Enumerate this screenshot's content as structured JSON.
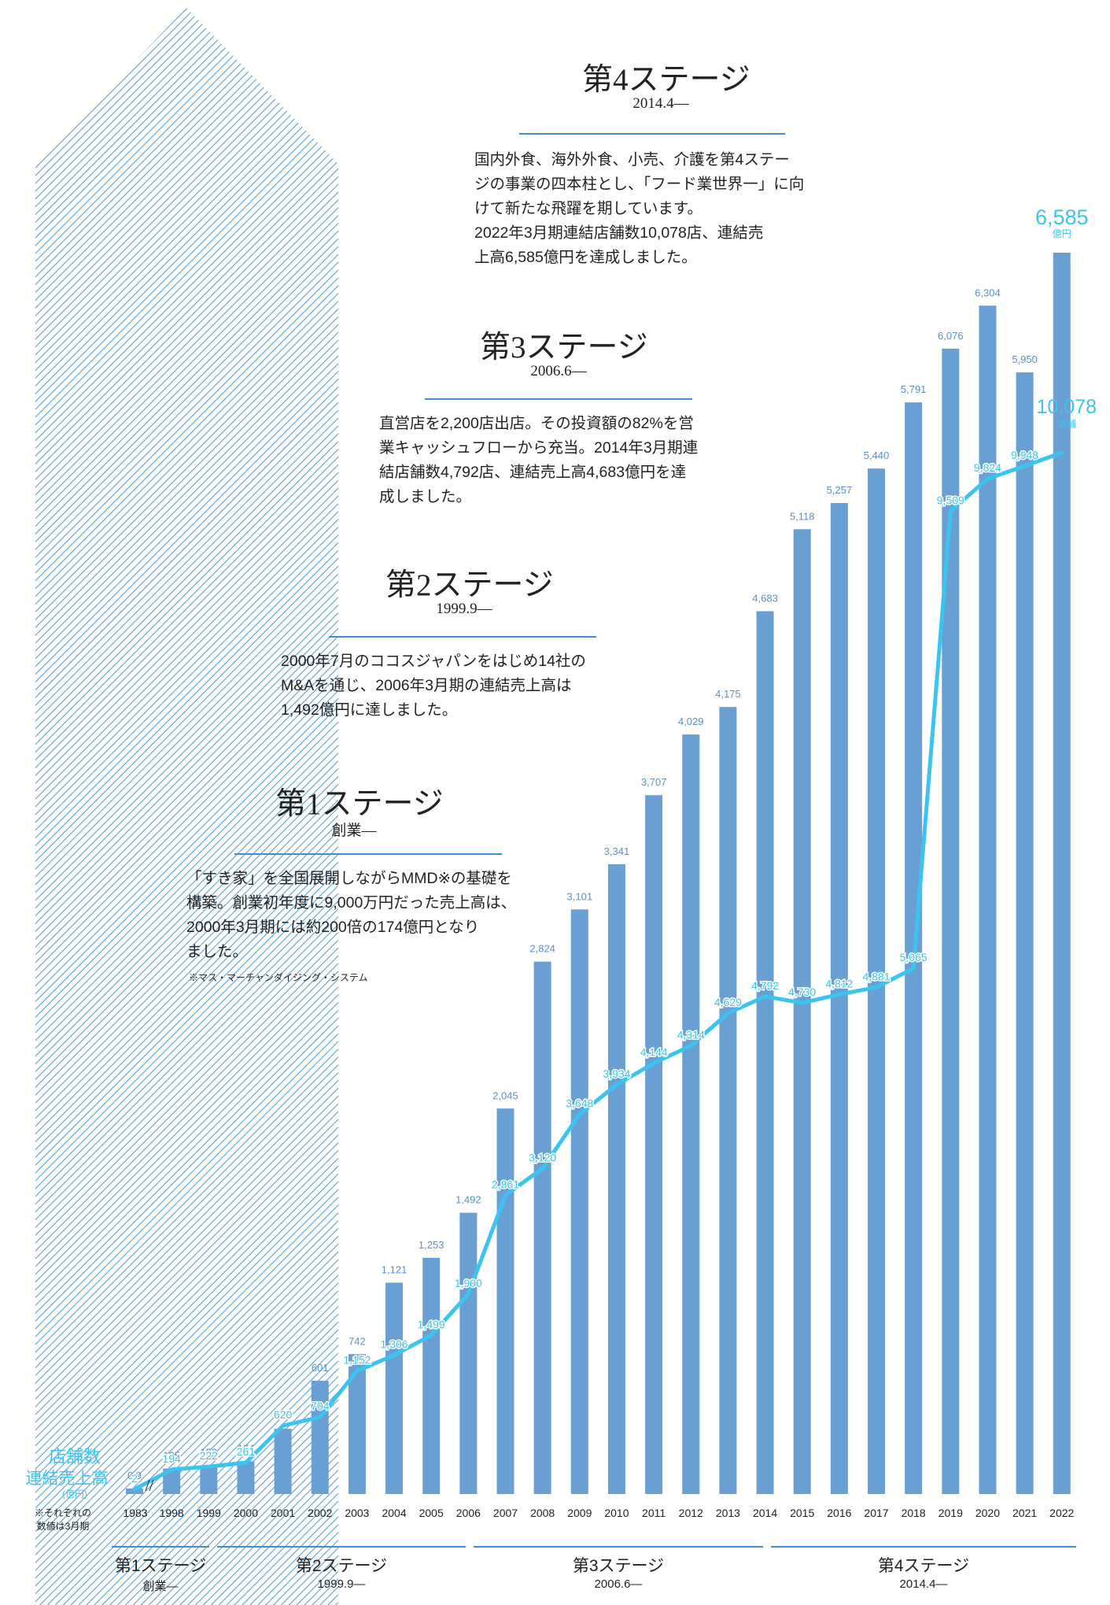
{
  "stages_text": {
    "s4": {
      "title": "第4ステージ",
      "date": "2014.4―",
      "lines": [
        "国内外食、海外外食、小売、介護を第4ステー",
        "ジの事業の四本柱とし、「フード業世界一」に向",
        "けて新たな飛躍を期しています。",
        "2022年3月期連結店舗数10,078店、連結売",
        "上高6,585億円を達成しました。"
      ]
    },
    "s3": {
      "title": "第3ステージ",
      "date": "2006.6―",
      "lines": [
        "直営店を2,200店出店。その投資額の82%を営",
        "業キャッシュフローから充当。2014年3月期連",
        "結店舗数4,792店、連結売上高4,683億円を達",
        "成しました。"
      ]
    },
    "s2": {
      "title": "第2ステージ",
      "date": "1999.9―",
      "lines": [
        "2000年7月のココスジャパンをはじめ14社の",
        "M&Aを通じ、2006年3月期の連結売上高は",
        "1,492億円に達しました。"
      ]
    },
    "s1": {
      "title": "第1ステージ",
      "date": "創業―",
      "lines": [
        "「すき家」を全国展開しながらMMD※の基礎を",
        "構築。創業初年度に9,000万円だった売上高は、",
        "2000年3月期には約200倍の174億円となり",
        "ました。"
      ],
      "footnote": "※マス・マーチャンダイジング・システム"
    }
  },
  "legend": {
    "stores": "店舗数",
    "sales": "連結売上高",
    "sales_unit": "(億円)",
    "note_line1": "※それぞれの",
    "note_line2": "数値は3月期"
  },
  "bottom_bands": [
    {
      "label": "第1ステージ",
      "date": "創業―"
    },
    {
      "label": "第2ステージ",
      "date": "1999.9―"
    },
    {
      "label": "第3ステージ",
      "date": "2006.6―"
    },
    {
      "label": "第4ステージ",
      "date": "2014.4―"
    }
  ],
  "colors": {
    "bar": "#6a9fd4",
    "line": "#3cc4f0",
    "rule": "#3d8fd3",
    "chevron": "#3f8ed2"
  },
  "chart_data": {
    "type": "bar",
    "categories": [
      "1983",
      "1998",
      "1999",
      "2000",
      "2001",
      "2002",
      "2003",
      "2004",
      "2005",
      "2006",
      "2007",
      "2008",
      "2009",
      "2010",
      "2011",
      "2012",
      "2013",
      "2014",
      "2015",
      "2016",
      "2017",
      "2018",
      "2019",
      "2020",
      "2021",
      "2022"
    ],
    "series": [
      {
        "name": "連結売上高",
        "unit": "億円",
        "type": "bar",
        "values": [
          0.9,
          135,
          152,
          174,
          346,
          601,
          742,
          1121,
          1253,
          1492,
          2045,
          2824,
          3101,
          3341,
          3707,
          4029,
          4175,
          4683,
          5118,
          5257,
          5440,
          5791,
          6076,
          6304,
          5950,
          6585
        ],
        "labels": [
          "0.9",
          "135",
          "152",
          "174",
          "346",
          "601",
          "742",
          "1,121",
          "1,253",
          "1,492",
          "2,045",
          "2,824",
          "3,101",
          "3,341",
          "3,707",
          "4,029",
          "4,175",
          "4,683",
          "5,118",
          "5,257",
          "5,440",
          "5,791",
          "6,076",
          "6,304",
          "5,950",
          "6,585"
        ]
      },
      {
        "name": "店舗数",
        "unit": "店舗",
        "type": "line",
        "values": [
          2,
          194,
          222,
          261,
          620,
          704,
          1152,
          1306,
          1499,
          1900,
          2861,
          3120,
          3648,
          3934,
          4144,
          4314,
          4629,
          4792,
          4730,
          4812,
          4881,
          5065,
          9509,
          9824,
          9948,
          10078
        ],
        "labels": [
          "2",
          "194",
          "222",
          "261",
          "620",
          "704",
          "1,152",
          "1,306",
          "1,499",
          "1,900",
          "2,861",
          "3,120",
          "3,648",
          "3,934",
          "4,144",
          "4,314",
          "4,629",
          "4,792",
          "4,730",
          "4,812",
          "4,881",
          "5,065",
          "9,509",
          "9,824",
          "9,948",
          "10,078"
        ]
      }
    ],
    "last_units": {
      "sales": "億円",
      "stores": "店舗"
    },
    "axis_break_after": "1983"
  }
}
